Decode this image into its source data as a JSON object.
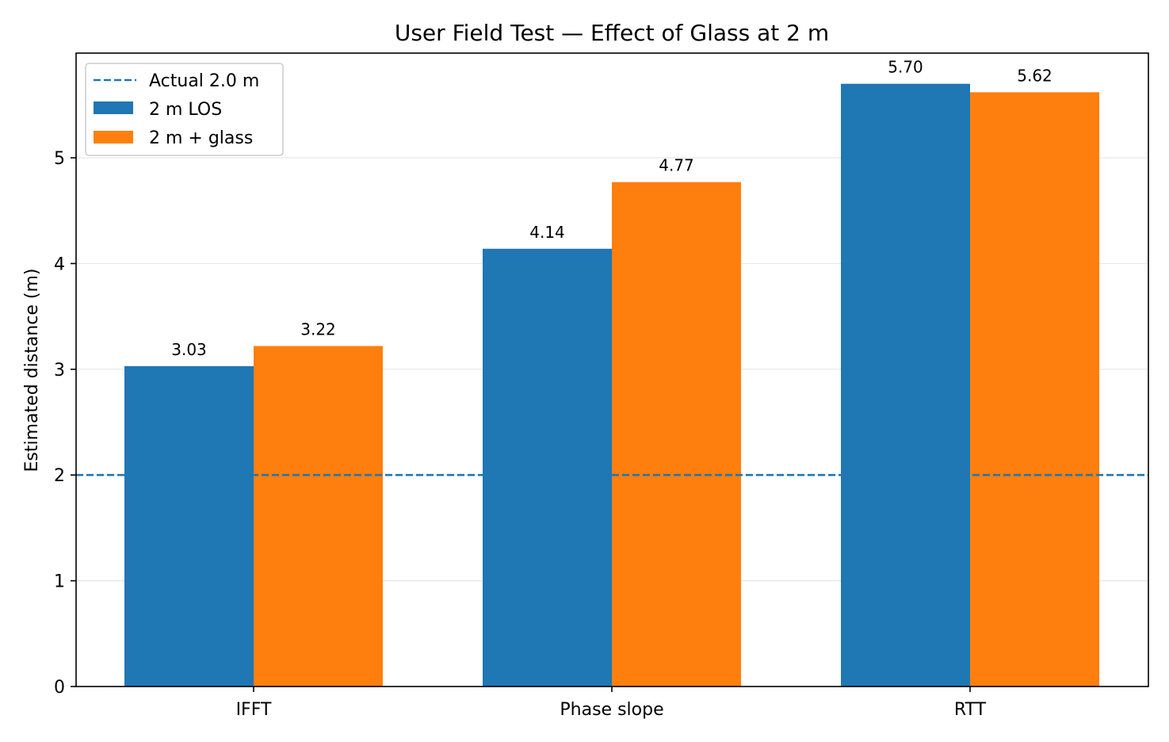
{
  "chart_data": {
    "type": "bar",
    "title": "User Field Test — Effect of Glass at 2 m",
    "xlabel": "",
    "ylabel": "Estimated distance (m)",
    "categories": [
      "IFFT",
      "Phase slope",
      "RTT"
    ],
    "series": [
      {
        "name": "2 m LOS",
        "color": "#1f77b4",
        "values": [
          3.03,
          4.14,
          5.7
        ],
        "labels": [
          "3.03",
          "4.14",
          "5.70"
        ]
      },
      {
        "name": "2 m + glass",
        "color": "#ff7f0e",
        "values": [
          3.22,
          4.77,
          5.62
        ],
        "labels": [
          "3.22",
          "4.77",
          "5.62"
        ]
      }
    ],
    "reference_line": {
      "label": "Actual 2.0 m",
      "value": 2.0,
      "color": "#1f77b4",
      "style": "dashed"
    },
    "ylim": [
      0,
      5.99
    ],
    "yticks": [
      {
        "value": 0,
        "label": "0"
      },
      {
        "value": 1,
        "label": "1"
      },
      {
        "value": 2,
        "label": "2"
      },
      {
        "value": 3,
        "label": "3"
      },
      {
        "value": 4,
        "label": "4"
      },
      {
        "value": 5,
        "label": "5"
      }
    ],
    "grid": "y-major",
    "legend_position": "top-left"
  }
}
